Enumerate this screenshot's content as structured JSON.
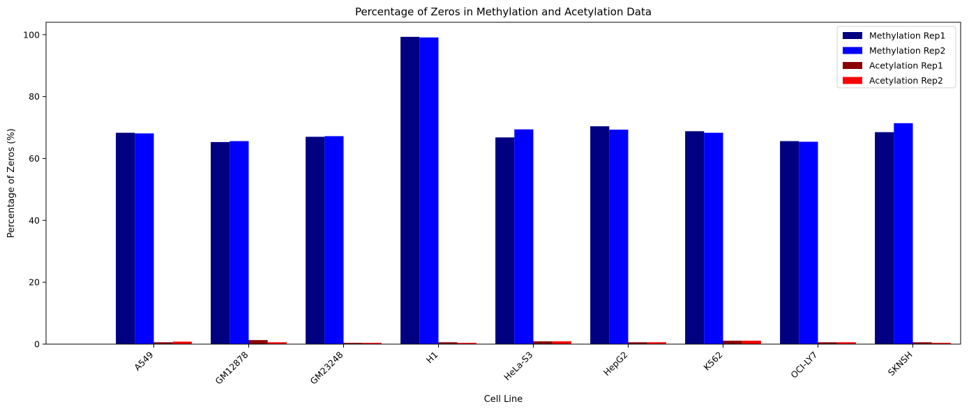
{
  "chart_data": {
    "type": "bar",
    "title": "Percentage of Zeros in Methylation and Acetylation Data",
    "xlabel": "Cell Line",
    "ylabel": "Percentage of Zeros (%)",
    "ylim": [
      0,
      104
    ],
    "yticks": [
      0,
      20,
      40,
      60,
      80,
      100
    ],
    "grid": false,
    "legend_position": "top-right",
    "categories": [
      "A549",
      "GM12878",
      "GM23248",
      "H1",
      "HeLa-S3",
      "HepG2",
      "K562",
      "OCI-LY7",
      "SKNSH"
    ],
    "series": [
      {
        "name": "Methylation Rep1",
        "color": "#000080",
        "values": [
          68.3,
          65.3,
          67.0,
          99.3,
          66.8,
          70.4,
          68.8,
          65.6,
          68.5
        ]
      },
      {
        "name": "Methylation Rep2",
        "color": "#0000ff",
        "values": [
          68.1,
          65.6,
          67.2,
          99.1,
          69.4,
          69.3,
          68.3,
          65.4,
          71.4
        ]
      },
      {
        "name": "Acetylation Rep1",
        "color": "#8b0000",
        "values": [
          0.6,
          1.3,
          0.4,
          0.6,
          0.9,
          0.6,
          1.1,
          0.6,
          0.6
        ]
      },
      {
        "name": "Acetylation Rep2",
        "color": "#ff0000",
        "values": [
          0.8,
          0.6,
          0.4,
          0.4,
          0.9,
          0.6,
          1.1,
          0.6,
          0.4
        ]
      }
    ]
  }
}
